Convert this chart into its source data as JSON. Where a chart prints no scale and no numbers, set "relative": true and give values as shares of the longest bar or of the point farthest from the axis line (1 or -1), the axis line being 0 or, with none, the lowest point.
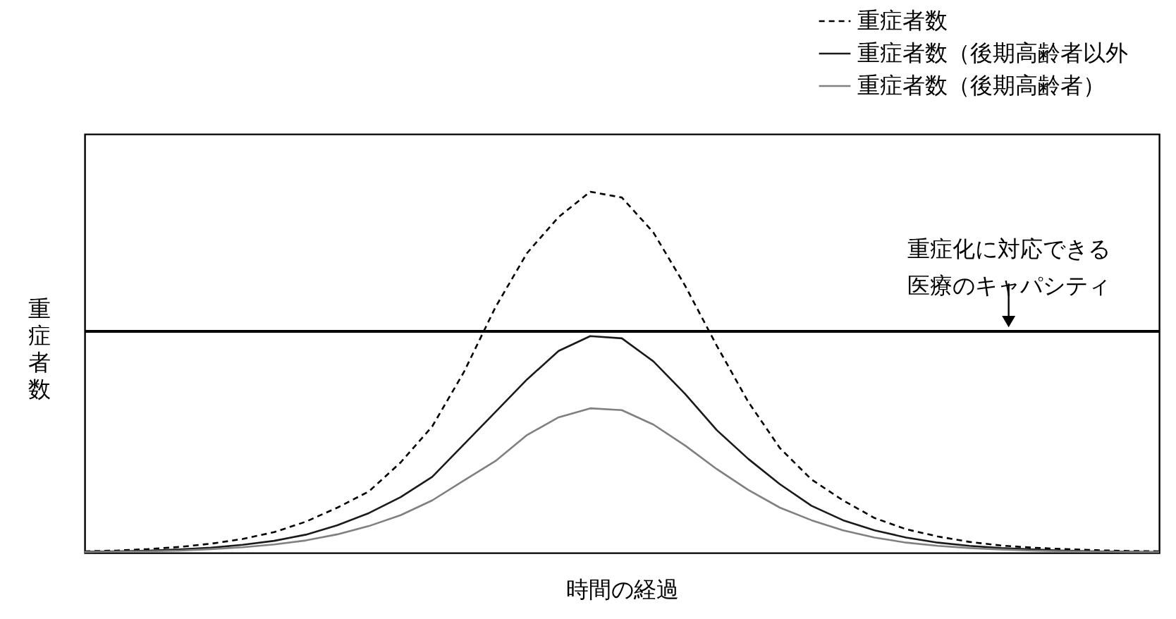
{
  "chart_data": {
    "type": "line",
    "relative": true,
    "xlabel": "時間の経過",
    "ylabel": "重症者数",
    "categories": [
      null,
      null,
      null,
      null,
      null,
      null,
      null,
      null,
      null,
      null,
      null,
      null,
      null,
      null,
      null,
      null,
      null,
      null,
      null,
      null,
      null,
      null,
      null,
      null,
      null,
      null,
      null,
      null,
      null,
      null,
      null,
      null,
      null,
      null,
      null
    ],
    "series": [
      {
        "name": "重症者数",
        "color": "#000000",
        "line_style": "dashed",
        "values": [
          0.004,
          0.006,
          0.01,
          0.016,
          0.025,
          0.038,
          0.057,
          0.086,
          0.125,
          0.17,
          0.25,
          0.35,
          0.5,
          0.68,
          0.83,
          0.93,
          1,
          0.984,
          0.887,
          0.74,
          0.574,
          0.418,
          0.29,
          0.203,
          0.145,
          0.096,
          0.065,
          0.045,
          0.03,
          0.02,
          0.014,
          0.01,
          0.007,
          0.005,
          0.004
        ]
      },
      {
        "name": "重症者数（後期高齢者以外",
        "color": "#1a1a1a",
        "line_style": "solid",
        "values": [
          0.003,
          0.004,
          0.006,
          0.009,
          0.014,
          0.022,
          0.033,
          0.05,
          0.076,
          0.11,
          0.154,
          0.21,
          0.3,
          0.39,
          0.48,
          0.559,
          0.6,
          0.594,
          0.53,
          0.44,
          0.34,
          0.26,
          0.19,
          0.13,
          0.09,
          0.062,
          0.042,
          0.028,
          0.019,
          0.013,
          0.009,
          0.006,
          0.004,
          0.003,
          0.002
        ]
      },
      {
        "name": "重症者数（後期高齢者）",
        "color": "#808080",
        "line_style": "solid",
        "values": [
          0.002,
          0.003,
          0.004,
          0.006,
          0.01,
          0.015,
          0.023,
          0.034,
          0.051,
          0.074,
          0.104,
          0.145,
          0.2,
          0.254,
          0.326,
          0.375,
          0.4,
          0.395,
          0.355,
          0.297,
          0.232,
          0.174,
          0.125,
          0.09,
          0.062,
          0.042,
          0.028,
          0.019,
          0.013,
          0.009,
          0.006,
          0.004,
          0.003,
          0.002,
          0.002
        ]
      }
    ],
    "ref_lines": [
      {
        "axis": "y",
        "value": 0.613,
        "label": "重症化に対応できる医療のキャパシティ",
        "color": "#000000"
      }
    ],
    "legend": "top right"
  }
}
